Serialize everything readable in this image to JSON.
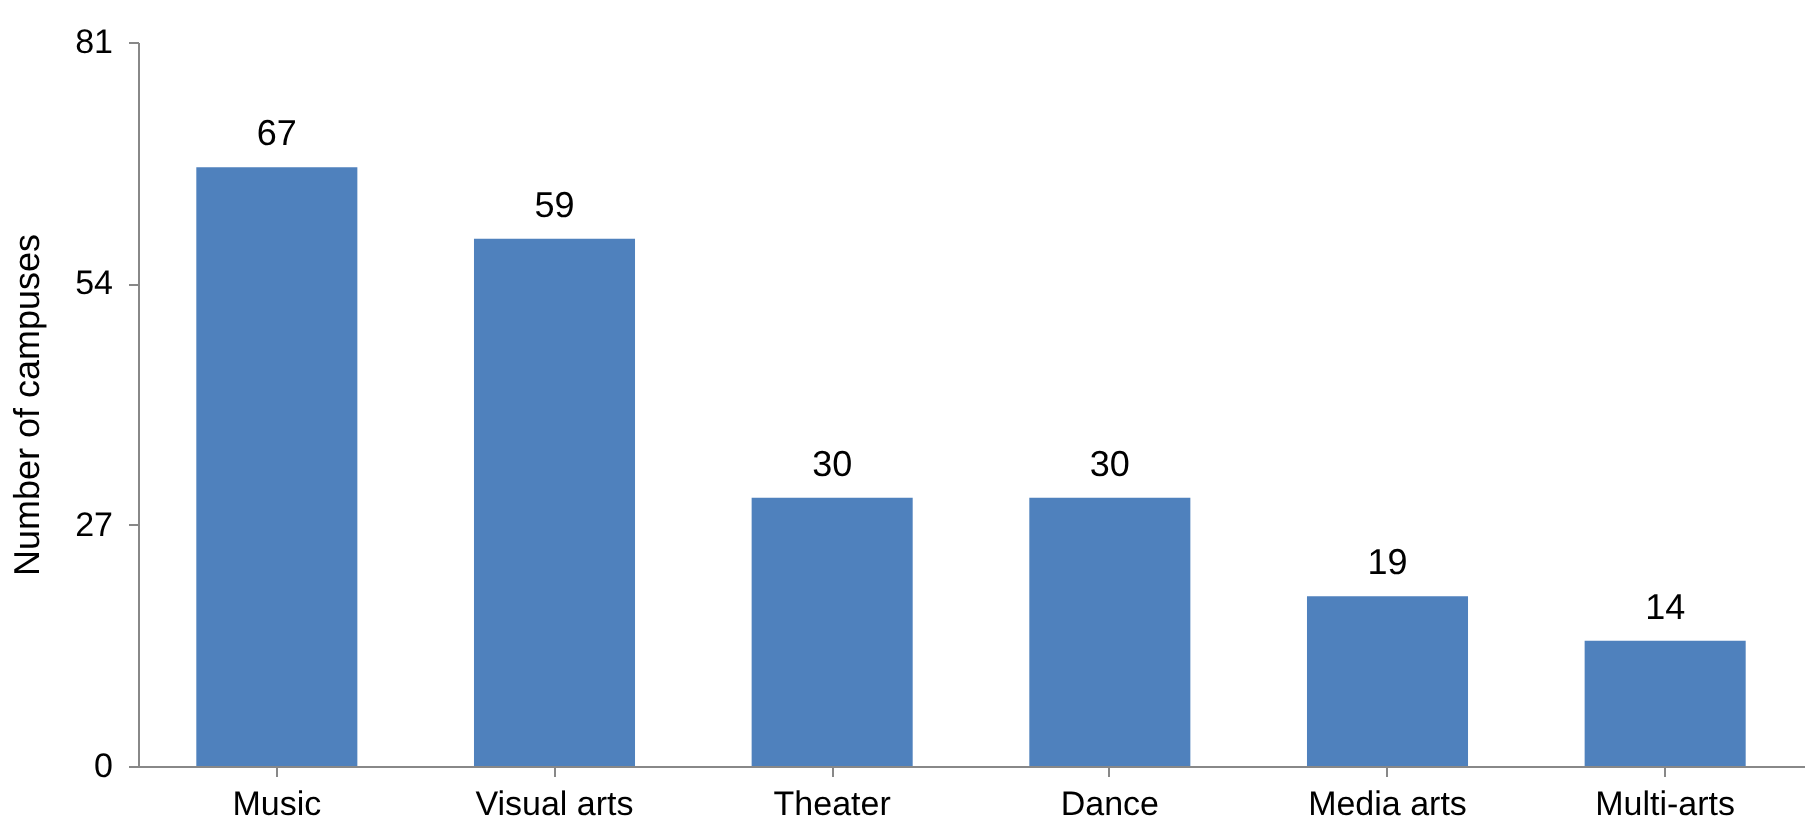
{
  "chart_data": {
    "type": "bar",
    "ylabel": "Number of campuses",
    "categories": [
      "Music",
      "Visual arts",
      "Theater",
      "Dance",
      "Media arts",
      "Multi-arts"
    ],
    "values": [
      67,
      59,
      30,
      30,
      19,
      14
    ],
    "color": "#4f81bd",
    "ylim": [
      0,
      81
    ],
    "yticks": [
      0,
      27,
      54,
      81
    ],
    "grid": false,
    "data_labels": true
  }
}
